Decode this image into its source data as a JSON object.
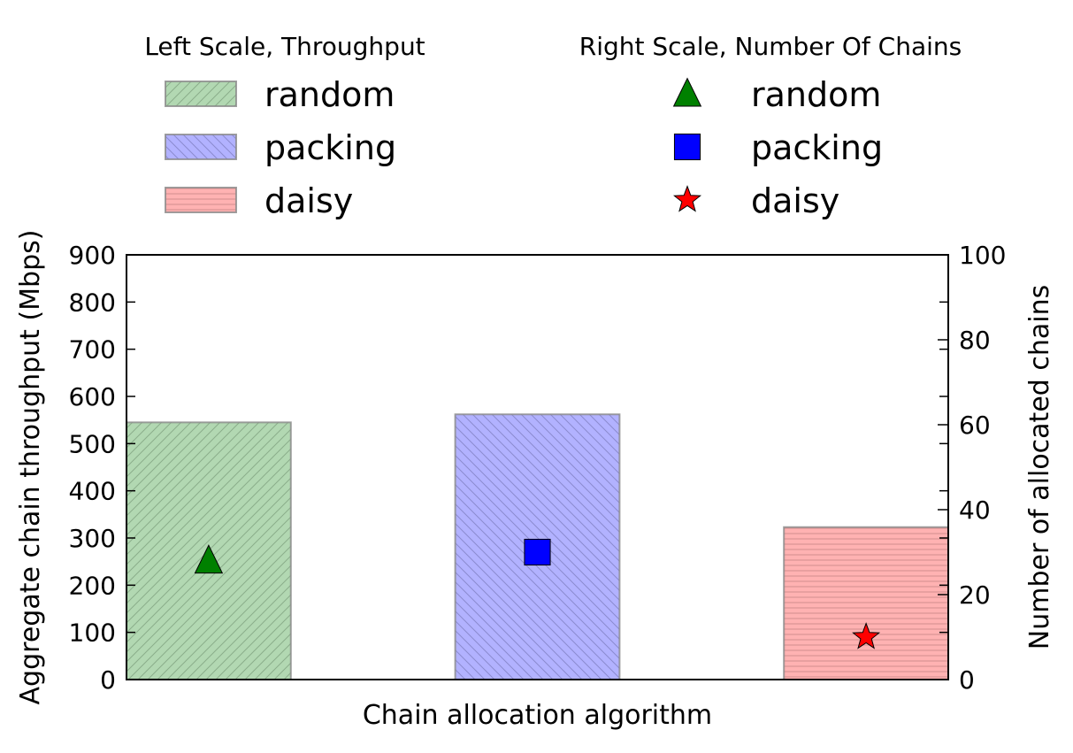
{
  "chart_data": {
    "type": "bar",
    "categories": [
      "random",
      "packing",
      "daisy"
    ],
    "xlabel": "Chain allocation algorithm",
    "ylabel": "Aggregate chain throughput (Mbps)",
    "y2label": "Number of allocated chains",
    "ylim": [
      0,
      900
    ],
    "y2lim": [
      0,
      100
    ],
    "yticks": [
      0,
      100,
      200,
      300,
      400,
      500,
      600,
      700,
      800,
      900
    ],
    "y2ticks": [
      0,
      20,
      40,
      60,
      80,
      100
    ],
    "grid": false,
    "throughput": {
      "legend_title": "Left Scale, Throughput",
      "series": [
        {
          "name": "random",
          "value": 545,
          "color": "#b2d8b2",
          "hatch": "diagonal-up"
        },
        {
          "name": "packing",
          "value": 562,
          "color": "#b2b2ff",
          "hatch": "diagonal-down"
        },
        {
          "name": "daisy",
          "value": 323,
          "color": "#ffb2b2",
          "hatch": "horizontal"
        }
      ]
    },
    "chains": {
      "legend_title": "Right Scale, Number Of Chains",
      "series": [
        {
          "name": "random",
          "value": 28,
          "color": "#008000",
          "marker": "triangle"
        },
        {
          "name": "packing",
          "value": 30,
          "color": "#0000ff",
          "marker": "square"
        },
        {
          "name": "daisy",
          "value": 10,
          "color": "#ff0000",
          "marker": "star"
        }
      ]
    }
  }
}
